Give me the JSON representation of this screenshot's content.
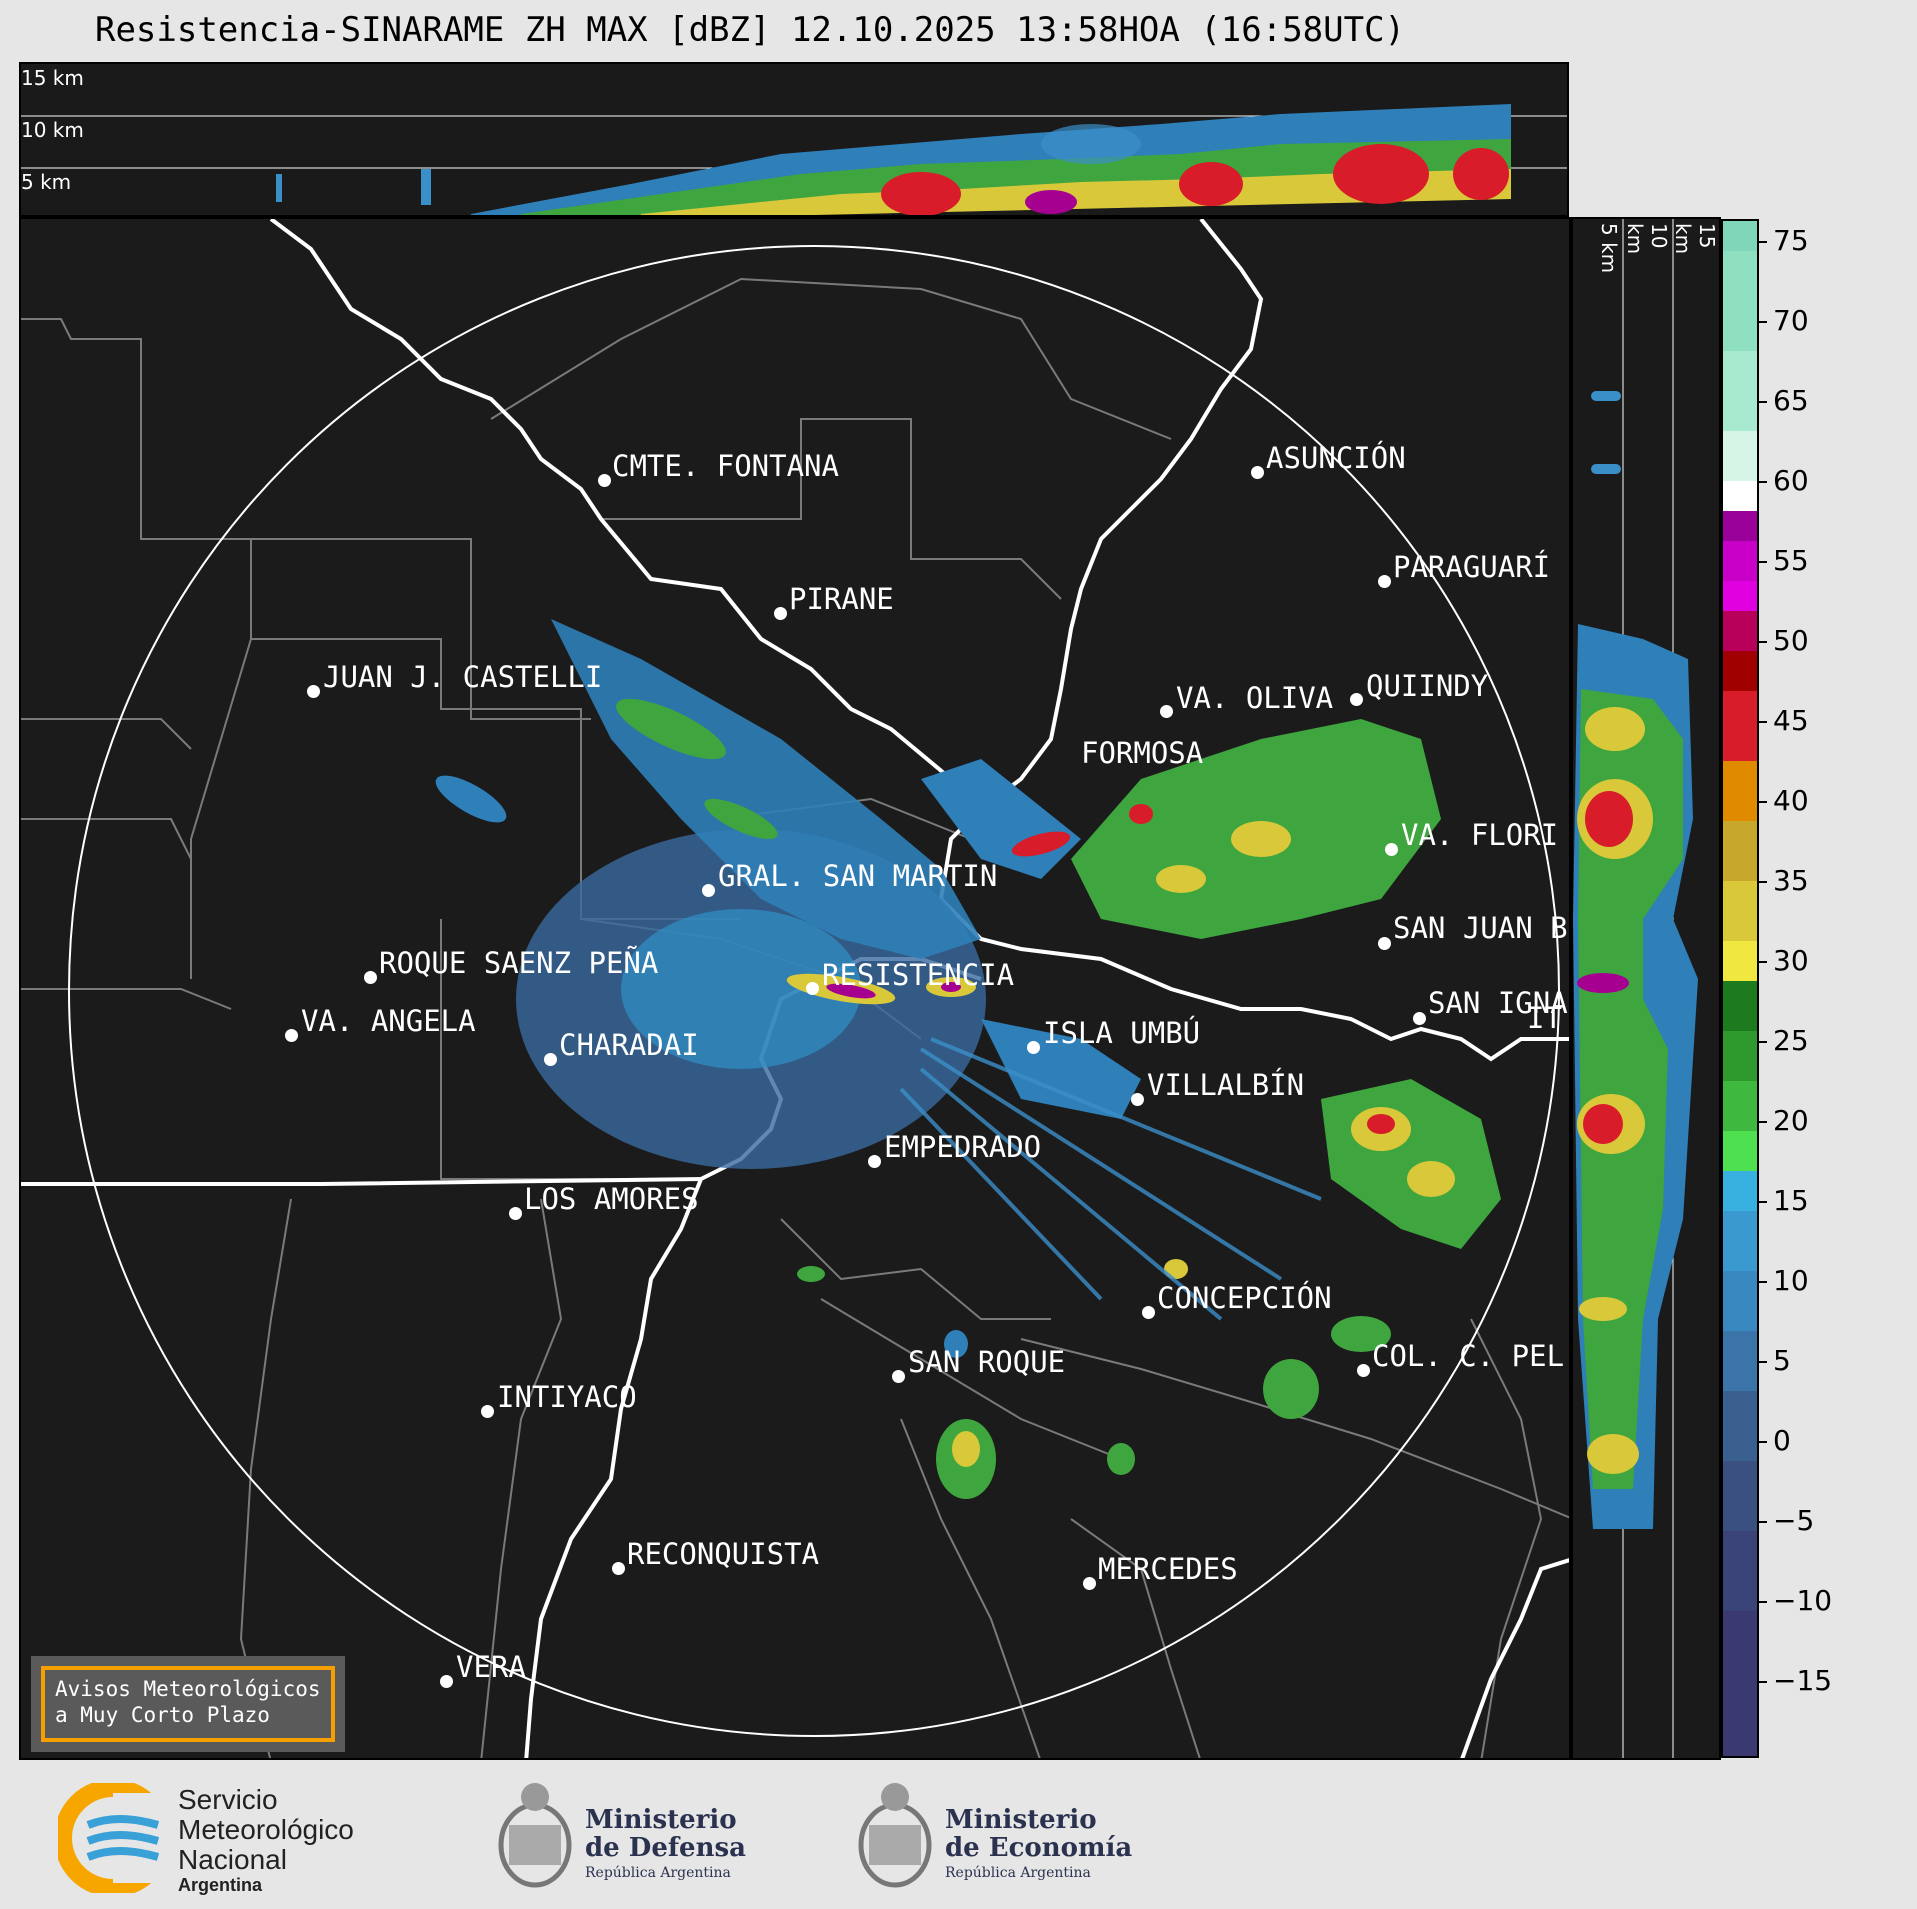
{
  "title": "Resistencia-SINARAME ZH MAX [dBZ] 12.10.2025 13:58HOA (16:58UTC)",
  "top_cross_section": {
    "labels": [
      "15 km",
      "10 km",
      "5 km"
    ]
  },
  "side_cross_section": {
    "labels": [
      "5 km",
      "10 km",
      "15 km"
    ]
  },
  "colorbar": {
    "ticks": [
      "75",
      "70",
      "65",
      "60",
      "55",
      "50",
      "45",
      "40",
      "35",
      "30",
      "25",
      "20",
      "15",
      "10",
      "5",
      "0",
      "−5",
      "−10",
      "−15"
    ]
  },
  "cities": [
    {
      "name": "CMTE. FONTANA"
    },
    {
      "name": "ASUNCIÓN"
    },
    {
      "name": "PIRANE"
    },
    {
      "name": "PARAGUARÍ"
    },
    {
      "name": "JUAN J. CASTELLI"
    },
    {
      "name": "VA. OLIVA"
    },
    {
      "name": "QUIINDY"
    },
    {
      "name": "FORMOSA"
    },
    {
      "name": "VA. FLORI"
    },
    {
      "name": "GRAL. SAN MARTIN"
    },
    {
      "name": "SAN JUAN B"
    },
    {
      "name": "ROQUE SAENZ PEÑA"
    },
    {
      "name": "SAN IGNA"
    },
    {
      "name": "ISLA UMBÚ"
    },
    {
      "name": "VILLALBÍN"
    },
    {
      "name": "RESISTENCIA"
    },
    {
      "name": "IT"
    },
    {
      "name": "VA. ANGELA"
    },
    {
      "name": "CHARADAI"
    },
    {
      "name": "EMPEDRADO"
    },
    {
      "name": "LOS AMORES"
    },
    {
      "name": "CONCEPCIÓN"
    },
    {
      "name": "COL. C. PEL"
    },
    {
      "name": "SAN ROQUE"
    },
    {
      "name": "INTIYACO"
    },
    {
      "name": "RECONQUISTA"
    },
    {
      "name": "MERCEDES"
    },
    {
      "name": "VERA"
    }
  ],
  "notice": {
    "line1": "Avisos Meteorológicos",
    "line2": "a Muy Corto Plazo"
  },
  "logos": {
    "smn": {
      "line1": "Servicio",
      "line2": "Meteorológico",
      "line3": "Nacional",
      "line4": "Argentina"
    },
    "defensa": {
      "line1": "Ministerio",
      "line2": "de Defensa",
      "line3": "República Argentina"
    },
    "economia": {
      "line1": "Ministerio",
      "line2": "de Economía",
      "line3": "República Argentina"
    }
  },
  "colors": {
    "map_bg": "#1b1b1b",
    "notice_border": "#f5a000",
    "smn_yellow": "#f7a600",
    "smn_blue": "#3aa0d8"
  }
}
